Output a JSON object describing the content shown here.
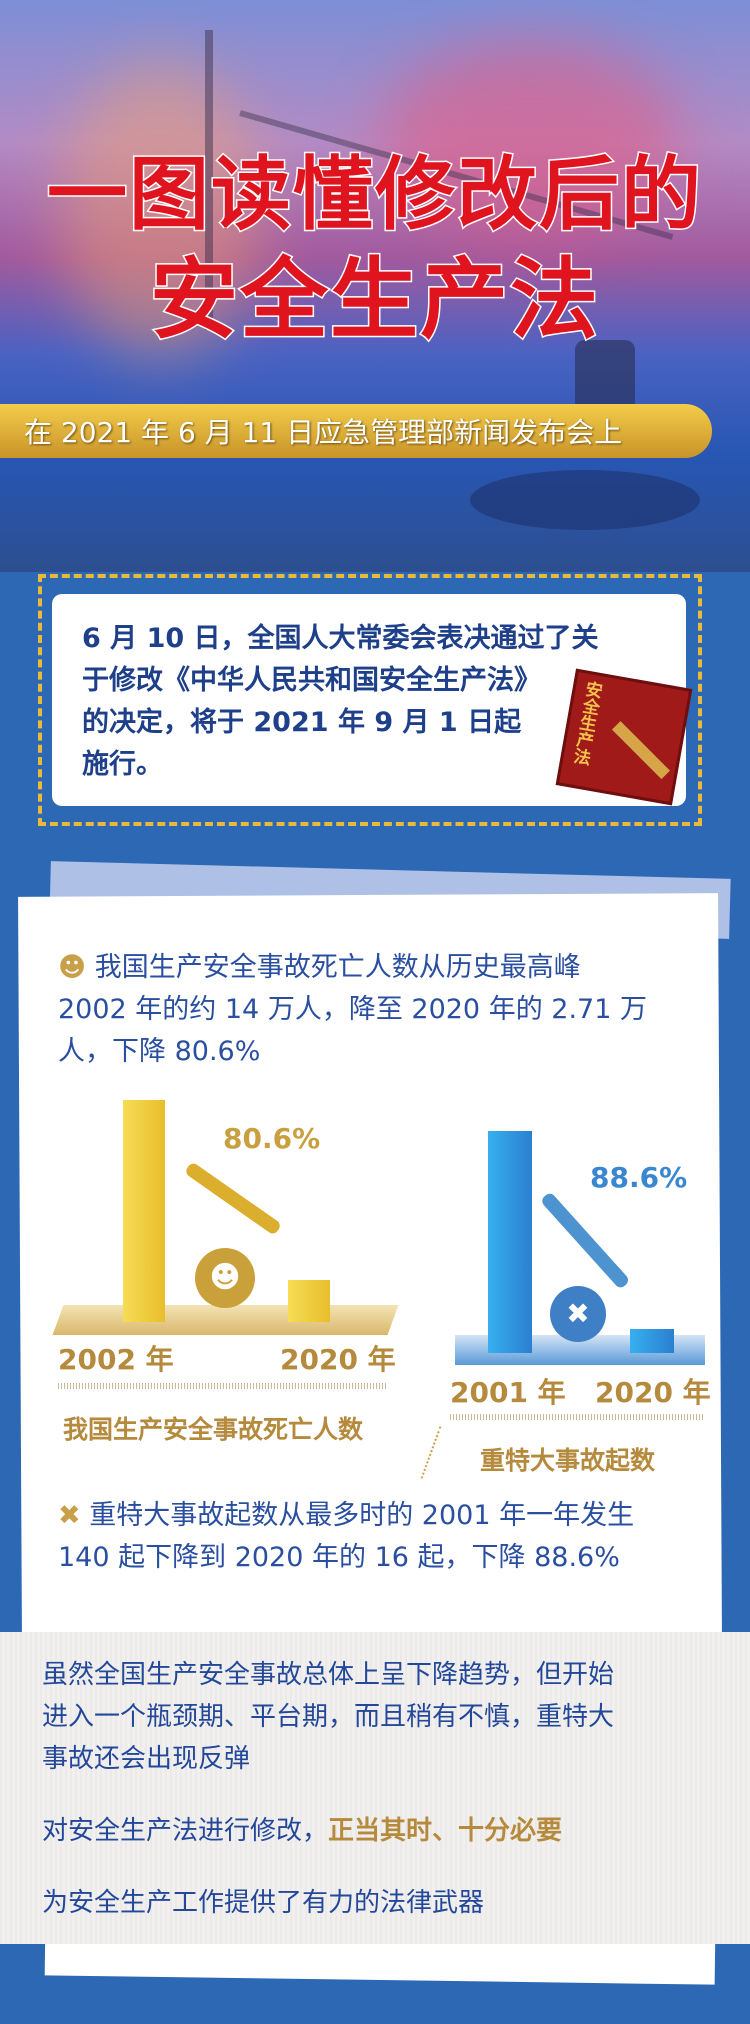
{
  "hero": {
    "title_line1": "一图读懂修改后的",
    "title_line2": "安全生产法",
    "banner": "在 2021 年 6 月 11 日应急管理部新闻发布会上"
  },
  "intro": {
    "lines": [
      "6 月 10 日，全国人大常委会表决通过了关",
      "于修改《中华人民共和国安全生产法》",
      "的决定，将于 2021 年 9 月 1 日起",
      "施行。"
    ],
    "book_label": "安全生产法"
  },
  "stats": {
    "para1": [
      "我国生产安全事故死亡人数从历史最高峰",
      "2002 年的约 14 万人，降至 2020 年的 2.71 万",
      "人，下降 80.6%"
    ],
    "chart1": {
      "pct": "80.6%",
      "year_a": "2002 年",
      "year_b": "2020 年",
      "title": "我国生产安全事故死亡人数",
      "color": "#f2cf3c"
    },
    "chart2": {
      "pct": "88.6%",
      "year_a": "2001 年",
      "year_b": "2020 年",
      "title": "重特大事故起数",
      "color": "#2f9be0"
    },
    "para2": [
      "重特大事故起数从最多时的 2001 年一年发生",
      "140 起下降到 2020 年的 16 起，下降 88.6%"
    ]
  },
  "conclusion": {
    "lines": [
      "虽然全国生产安全事故总体上呈下降趋势，但开始",
      "进入一个瓶颈期、平台期，而且稍有不慎，重特大",
      "事故还会出现反弹"
    ],
    "line2_prefix": "对安全生产法进行修改，",
    "line2_highlight": "正当其时、十分必要",
    "line3": "为安全生产工作提供了有力的法律武器"
  },
  "colors": {
    "background": "#2c68b4",
    "title_red": "#e0141e",
    "gold": "#b58a3c",
    "text_blue": "#2a4fa0"
  }
}
